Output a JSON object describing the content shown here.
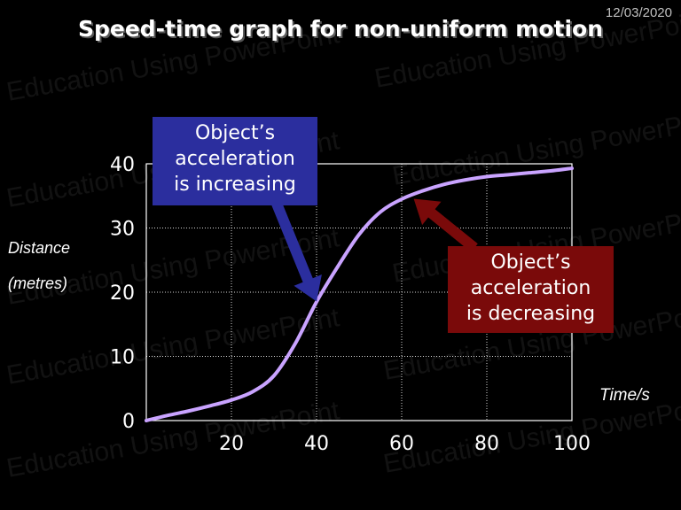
{
  "date": "12/03/2020",
  "colors": {
    "background": "#000000",
    "curve": "#c9a3ff",
    "callout_increasing": "#2b2e9e",
    "callout_decreasing": "#7a0a0a",
    "grid": "#ffffff"
  },
  "watermark_text": "Education Using PowerPoint",
  "chart_data": {
    "type": "line",
    "title": "Speed-time graph for non-uniform motion",
    "ylabel_lines": [
      "Distance",
      "(metres)"
    ],
    "xlabel": "Time/s",
    "xlim": [
      0,
      100
    ],
    "ylim": [
      0,
      40
    ],
    "xticks": [
      20,
      40,
      60,
      80,
      100
    ],
    "yticks": [
      0,
      10,
      20,
      30,
      40
    ],
    "grid": true,
    "series": [
      {
        "x": [
          0,
          5,
          10,
          15,
          20,
          25,
          30,
          35,
          40,
          45,
          50,
          55,
          60,
          65,
          70,
          75,
          80,
          85,
          90,
          95,
          100
        ],
        "y": [
          0,
          0.8,
          1.5,
          2.3,
          3.2,
          4.5,
          7,
          12,
          18.5,
          24,
          29,
          32.5,
          34.5,
          35.8,
          36.8,
          37.5,
          38,
          38.3,
          38.6,
          38.9,
          39.3
        ]
      }
    ],
    "annotations": [
      {
        "id": "increasing",
        "lines": [
          "Object’s",
          "acceleration",
          "is increasing"
        ],
        "point_to": {
          "x": 40,
          "y": 18
        }
      },
      {
        "id": "decreasing",
        "lines": [
          "Object’s",
          "acceleration",
          "is decreasing"
        ],
        "point_to": {
          "x": 62,
          "y": 34
        }
      }
    ]
  }
}
